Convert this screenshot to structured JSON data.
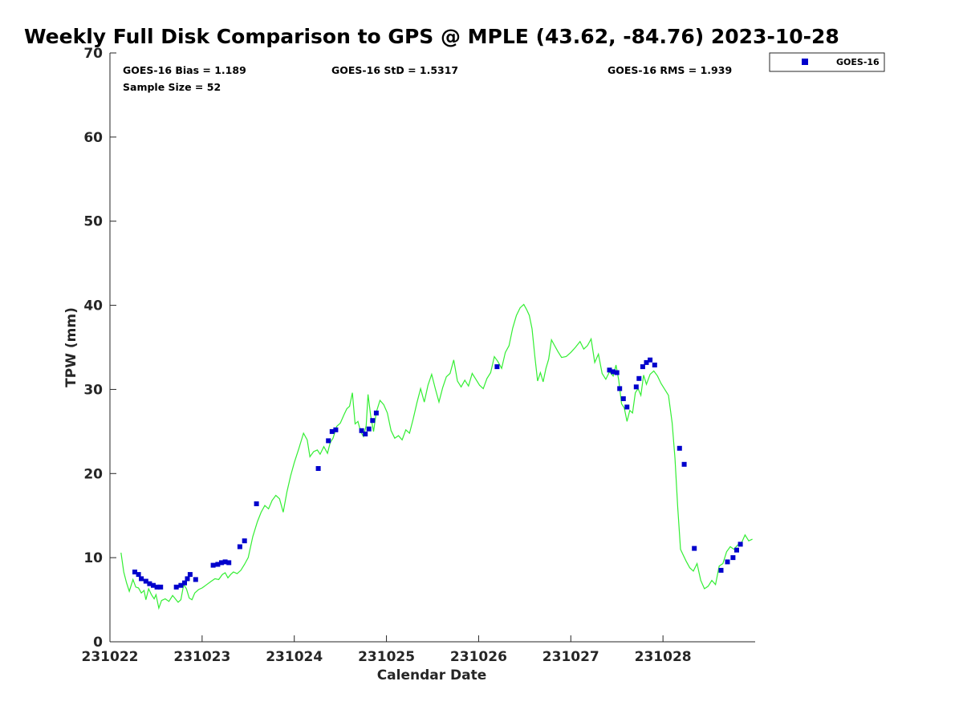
{
  "chart_data": {
    "type": "scatter",
    "title": "Weekly Full Disk Comparison to GPS @ MPLE (43.62, -84.76) 2023-10-28",
    "xlabel": "Calendar Date",
    "ylabel": "TPW (mm)",
    "xlim": [
      231022,
      231029.0
    ],
    "ylim": [
      0,
      70
    ],
    "grid": false,
    "xticks": [
      {
        "value": 231022,
        "label": "231022"
      },
      {
        "value": 231023,
        "label": "231023"
      },
      {
        "value": 231024,
        "label": "231024"
      },
      {
        "value": 231025,
        "label": "231025"
      },
      {
        "value": 231026,
        "label": "231026"
      },
      {
        "value": 231027,
        "label": "231027"
      },
      {
        "value": 231028,
        "label": "231028"
      }
    ],
    "yticks": [
      {
        "value": 0,
        "label": "0"
      },
      {
        "value": 10,
        "label": "10"
      },
      {
        "value": 20,
        "label": "20"
      },
      {
        "value": 30,
        "label": "30"
      },
      {
        "value": 40,
        "label": "40"
      },
      {
        "value": 50,
        "label": "50"
      },
      {
        "value": 60,
        "label": "60"
      },
      {
        "value": 70,
        "label": "70"
      }
    ],
    "stats": {
      "bias": "GOES-16 Bias = 1.189",
      "std": "GOES-16 StD = 1.5317",
      "rms": "GOES-16 RMS = 1.939",
      "sample": "Sample Size = 52"
    },
    "legend": {
      "label": "GOES-16",
      "position": "top-right"
    },
    "colors": {
      "points": "#0000cc",
      "line": "#33ee33",
      "axis": "#262626"
    },
    "series": [
      {
        "name": "GOES-16",
        "kind": "points",
        "x": [
          231022.27,
          231022.31,
          231022.34,
          231022.39,
          231022.43,
          231022.47,
          231022.51,
          231022.55,
          231022.72,
          231022.77,
          231022.81,
          231022.84,
          231022.87,
          231022.93,
          231023.12,
          231023.17,
          231023.21,
          231023.25,
          231023.29,
          231023.41,
          231023.46,
          231023.59,
          231024.26,
          231024.37,
          231024.41,
          231024.45,
          231024.73,
          231024.77,
          231024.81,
          231024.85,
          231024.89,
          231026.2,
          231027.42,
          231027.46,
          231027.5,
          231027.53,
          231027.57,
          231027.61,
          231027.71,
          231027.74,
          231027.78,
          231027.82,
          231027.86,
          231027.91,
          231028.18,
          231028.23,
          231028.34,
          231028.63,
          231028.7,
          231028.76,
          231028.8,
          231028.84
        ],
        "y": [
          8.3,
          8.0,
          7.5,
          7.2,
          6.9,
          6.7,
          6.5,
          6.5,
          6.5,
          6.7,
          7.0,
          7.5,
          8.0,
          7.4,
          9.1,
          9.2,
          9.4,
          9.5,
          9.4,
          11.3,
          12.0,
          16.4,
          20.6,
          23.9,
          25.0,
          25.2,
          25.1,
          24.7,
          25.3,
          26.3,
          27.2,
          32.7,
          32.3,
          32.1,
          32.0,
          30.1,
          28.9,
          27.9,
          30.3,
          31.3,
          32.7,
          33.2,
          33.5,
          32.9,
          23.0,
          21.1,
          11.1,
          8.5,
          9.5,
          10.0,
          10.9,
          11.6
        ]
      },
      {
        "name": "GPS",
        "kind": "line",
        "x": [
          231022.12,
          231022.15,
          231022.18,
          231022.21,
          231022.25,
          231022.28,
          231022.31,
          231022.34,
          231022.37,
          231022.39,
          231022.42,
          231022.45,
          231022.48,
          231022.5,
          231022.53,
          231022.56,
          231022.6,
          231022.64,
          231022.68,
          231022.71,
          231022.74,
          231022.77,
          231022.8,
          231022.83,
          231022.86,
          231022.89,
          231022.92,
          231022.96,
          231023.0,
          231023.05,
          231023.1,
          231023.14,
          231023.18,
          231023.22,
          231023.25,
          231023.28,
          231023.31,
          231023.34,
          231023.38,
          231023.42,
          231023.46,
          231023.5,
          231023.55,
          231023.6,
          231023.64,
          231023.68,
          231023.72,
          231023.76,
          231023.8,
          231023.84,
          231023.88,
          231023.92,
          231023.96,
          231024.0,
          231024.05,
          231024.1,
          231024.14,
          231024.17,
          231024.21,
          231024.25,
          231024.28,
          231024.32,
          231024.36,
          231024.39,
          231024.42,
          231024.46,
          231024.5,
          231024.54,
          231024.57,
          231024.6,
          231024.63,
          231024.66,
          231024.69,
          231024.72,
          231024.75,
          231024.78,
          231024.8,
          231024.83,
          231024.86,
          231024.89,
          231024.93,
          231024.97,
          231025.01,
          231025.05,
          231025.09,
          231025.13,
          231025.17,
          231025.21,
          231025.25,
          231025.29,
          231025.33,
          231025.37,
          231025.41,
          231025.45,
          231025.49,
          231025.53,
          231025.57,
          231025.61,
          231025.65,
          231025.69,
          231025.73,
          231025.77,
          231025.81,
          231025.85,
          231025.89,
          231025.93,
          231025.97,
          231026.01,
          231026.05,
          231026.09,
          231026.13,
          231026.17,
          231026.21,
          231026.25,
          231026.29,
          231026.33,
          231026.37,
          231026.41,
          231026.45,
          231026.49,
          231026.52,
          231026.55,
          231026.58,
          231026.61,
          231026.64,
          231026.67,
          231026.7,
          231026.73,
          231026.76,
          231026.79,
          231026.82,
          231026.86,
          231026.9,
          231026.95,
          231027.0,
          231027.05,
          231027.1,
          231027.14,
          231027.18,
          231027.22,
          231027.26,
          231027.3,
          231027.34,
          231027.38,
          231027.42,
          231027.46,
          231027.49,
          231027.52,
          231027.55,
          231027.58,
          231027.61,
          231027.64,
          231027.67,
          231027.7,
          231027.73,
          231027.76,
          231027.79,
          231027.82,
          231027.86,
          231027.9,
          231027.94,
          231027.98,
          231028.02,
          231028.06,
          231028.1,
          231028.13,
          231028.16,
          231028.19,
          231028.22,
          231028.25,
          231028.29,
          231028.33,
          231028.37,
          231028.41,
          231028.45,
          231028.49,
          231028.53,
          231028.57,
          231028.61,
          231028.65,
          231028.69,
          231028.73,
          231028.77,
          231028.81,
          231028.85,
          231028.89,
          231028.93,
          231028.97
        ],
        "y": [
          10.6,
          8.3,
          7.0,
          6.0,
          7.4,
          6.5,
          6.4,
          5.8,
          6.1,
          5.0,
          6.3,
          5.6,
          5.1,
          5.6,
          4.0,
          4.9,
          5.1,
          4.8,
          5.5,
          5.1,
          4.7,
          5.0,
          6.8,
          6.3,
          5.2,
          5.0,
          5.8,
          6.2,
          6.4,
          6.8,
          7.2,
          7.5,
          7.4,
          8.0,
          8.2,
          7.6,
          8.0,
          8.3,
          8.1,
          8.5,
          9.2,
          10.0,
          12.5,
          14.3,
          15.4,
          16.2,
          15.8,
          16.8,
          17.4,
          17.0,
          15.4,
          17.8,
          19.7,
          21.3,
          23.0,
          24.8,
          24.0,
          22.0,
          22.6,
          22.8,
          22.3,
          23.2,
          22.4,
          23.7,
          24.2,
          25.6,
          26.0,
          27.0,
          27.7,
          28.0,
          29.6,
          25.9,
          26.2,
          25.0,
          24.4,
          25.7,
          29.4,
          26.8,
          25.0,
          27.3,
          28.7,
          28.2,
          27.2,
          25.1,
          24.2,
          24.5,
          24.0,
          25.2,
          24.8,
          26.5,
          28.4,
          30.1,
          28.5,
          30.5,
          31.8,
          30.1,
          28.5,
          30.2,
          31.5,
          31.9,
          33.5,
          31.0,
          30.3,
          31.1,
          30.4,
          31.9,
          31.2,
          30.5,
          30.1,
          31.3,
          32.0,
          33.9,
          33.3,
          32.5,
          34.4,
          35.2,
          37.3,
          38.8,
          39.7,
          40.1,
          39.5,
          38.8,
          37.2,
          33.9,
          31.0,
          32.0,
          30.9,
          32.5,
          33.6,
          35.9,
          35.3,
          34.5,
          33.8,
          33.9,
          34.4,
          35.0,
          35.7,
          34.8,
          35.2,
          36.0,
          33.2,
          34.2,
          31.9,
          31.2,
          32.1,
          31.6,
          32.9,
          31.1,
          28.3,
          27.8,
          26.2,
          27.5,
          27.2,
          29.6,
          30.1,
          29.3,
          31.7,
          30.6,
          31.8,
          32.2,
          31.6,
          30.7,
          30.0,
          29.3,
          26.0,
          21.8,
          16.0,
          11.0,
          10.3,
          9.6,
          8.8,
          8.4,
          9.3,
          7.3,
          6.3,
          6.6,
          7.3,
          6.8,
          9.0,
          9.3,
          10.7,
          11.3,
          11.0,
          11.5,
          11.7,
          12.7,
          12.0,
          12.2
        ]
      }
    ]
  }
}
